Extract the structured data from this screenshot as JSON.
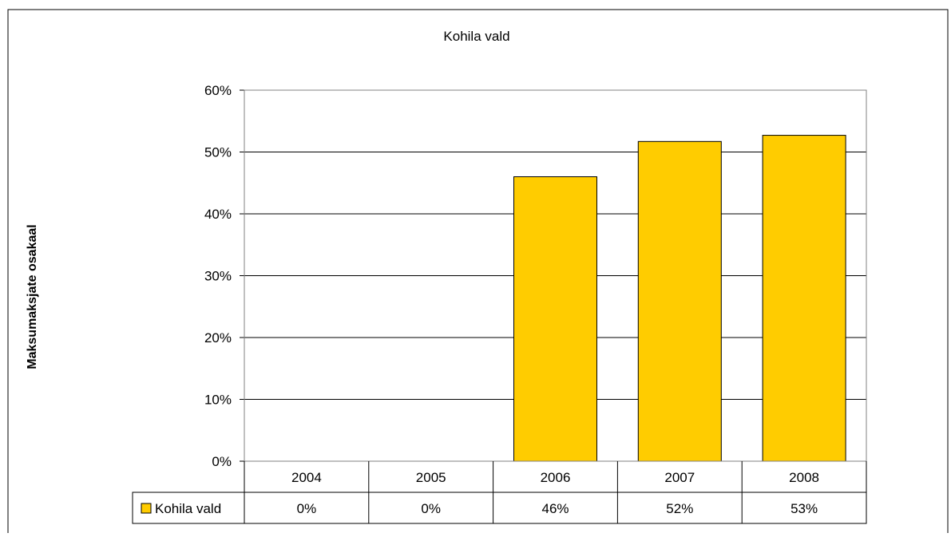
{
  "chart_data": {
    "type": "bar",
    "title": "Kohila vald",
    "xlabel": "",
    "ylabel": "Maksumaksjate osakaal",
    "ylim": [
      0,
      60
    ],
    "yticks": [
      "0%",
      "10%",
      "20%",
      "30%",
      "40%",
      "50%",
      "60%"
    ],
    "ytick_values": [
      0,
      10,
      20,
      30,
      40,
      50,
      60
    ],
    "categories": [
      "2004",
      "2005",
      "2006",
      "2007",
      "2008"
    ],
    "series": [
      {
        "name": "Kohila vald",
        "values": [
          0,
          0,
          46,
          51.7,
          52.7
        ],
        "labels": [
          "0%",
          "0%",
          "46%",
          "52%",
          "53%"
        ],
        "color": "#FFCC00"
      }
    ],
    "grid": true,
    "legend": "data-table"
  }
}
